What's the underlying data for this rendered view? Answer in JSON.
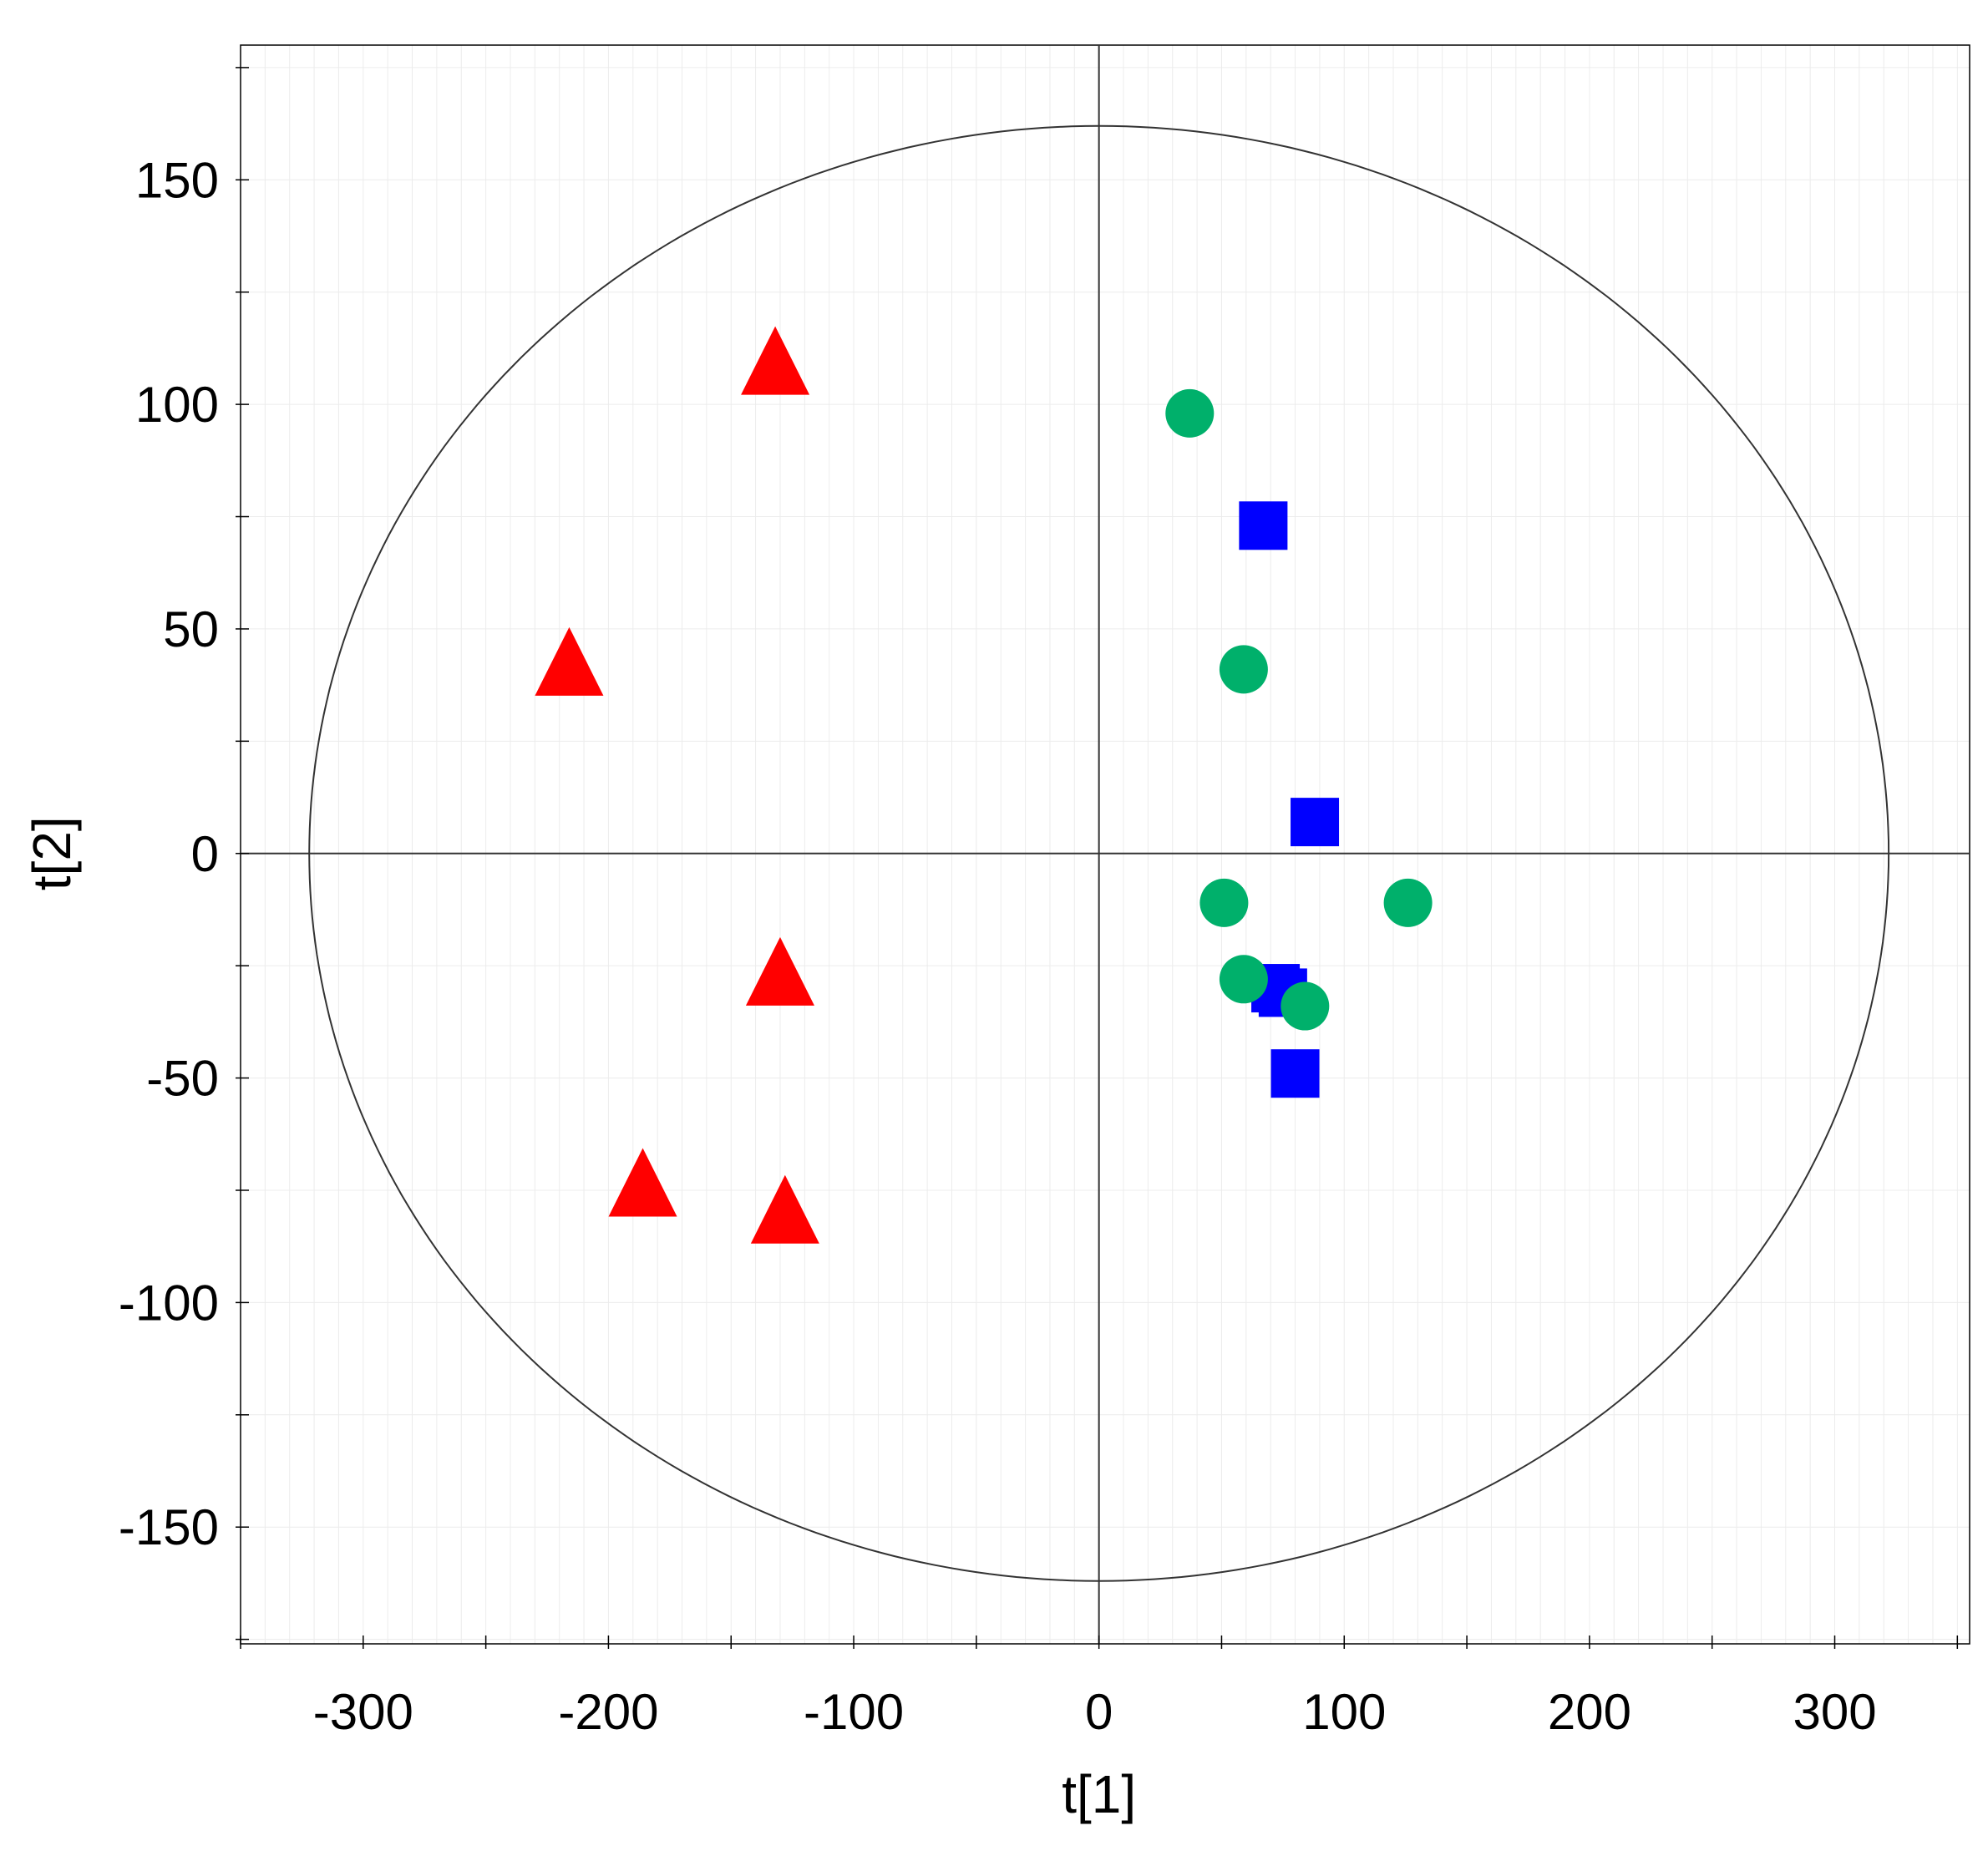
{
  "chart_data": {
    "type": "scatter",
    "title": "",
    "xlabel": "t[1]",
    "ylabel": "t[2]",
    "xlim": [
      -350,
      355
    ],
    "ylim": [
      -176,
      180
    ],
    "x_ticks": [
      -300,
      -200,
      -100,
      0,
      100,
      200,
      300
    ],
    "x_tick_labels": [
      "-300",
      "-200",
      "-100",
      "0",
      "100",
      "200",
      "300"
    ],
    "y_ticks": [
      150,
      100,
      50,
      0,
      -50,
      -100,
      -150
    ],
    "y_tick_labels": [
      "150",
      "100",
      "50",
      "0",
      "-50",
      "-100",
      "-150"
    ],
    "grid": true,
    "hotelling_ellipse": {
      "rx": 322,
      "ry": 162
    },
    "series": [
      {
        "marker": "triangle",
        "color": "#ff0000",
        "points": [
          {
            "x": -132,
            "y": 109
          },
          {
            "x": -216,
            "y": 42
          },
          {
            "x": -130,
            "y": -27
          },
          {
            "x": -186,
            "y": -74
          },
          {
            "x": -128,
            "y": -80
          }
        ]
      },
      {
        "marker": "square",
        "color": "#0000ff",
        "points": [
          {
            "x": 67,
            "y": 73
          },
          {
            "x": 88,
            "y": 7
          },
          {
            "x": 72,
            "y": -30
          },
          {
            "x": 75,
            "y": -31
          },
          {
            "x": 80,
            "y": -49
          }
        ]
      },
      {
        "marker": "circle",
        "color": "#00b06b",
        "points": [
          {
            "x": 37,
            "y": 98
          },
          {
            "x": 59,
            "y": 41
          },
          {
            "x": 51,
            "y": -11
          },
          {
            "x": 126,
            "y": -11
          },
          {
            "x": 59,
            "y": -28
          },
          {
            "x": 84,
            "y": -34
          }
        ]
      }
    ]
  }
}
